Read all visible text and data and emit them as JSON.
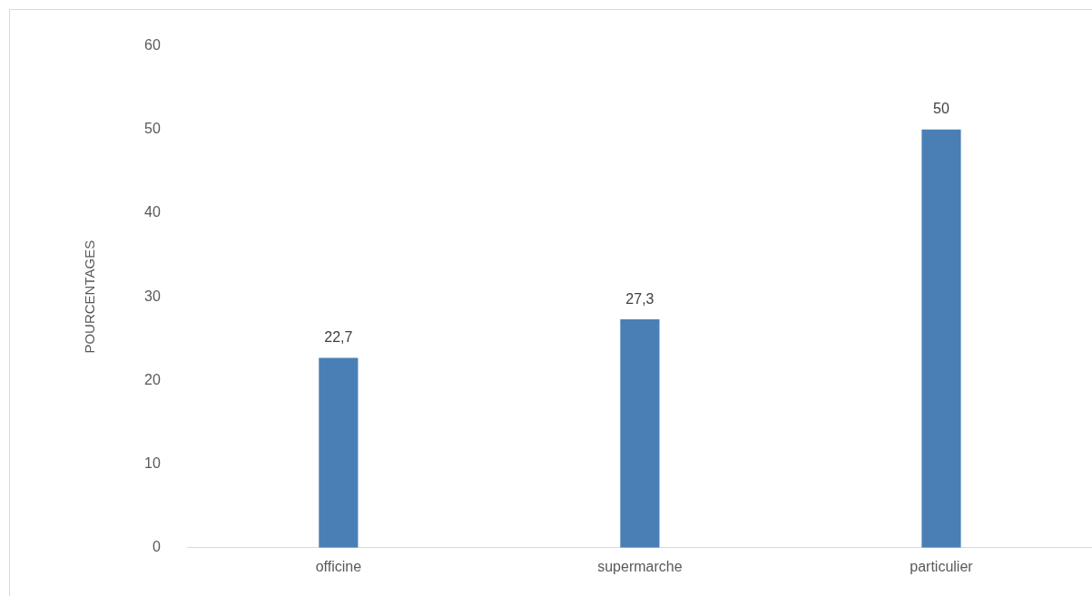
{
  "chart_data": {
    "type": "bar",
    "ylabel": "POURCENTAGES",
    "categories": [
      "officine",
      "supermarche",
      "particulier"
    ],
    "values": [
      22.7,
      27.3,
      50
    ],
    "value_labels": [
      "22,7",
      "27,3",
      "50"
    ],
    "color": "#4a7fb5",
    "ylim": [
      0,
      60
    ],
    "yticks": [
      0,
      10,
      20,
      30,
      40,
      50,
      60
    ],
    "grid": false,
    "legend": false
  }
}
